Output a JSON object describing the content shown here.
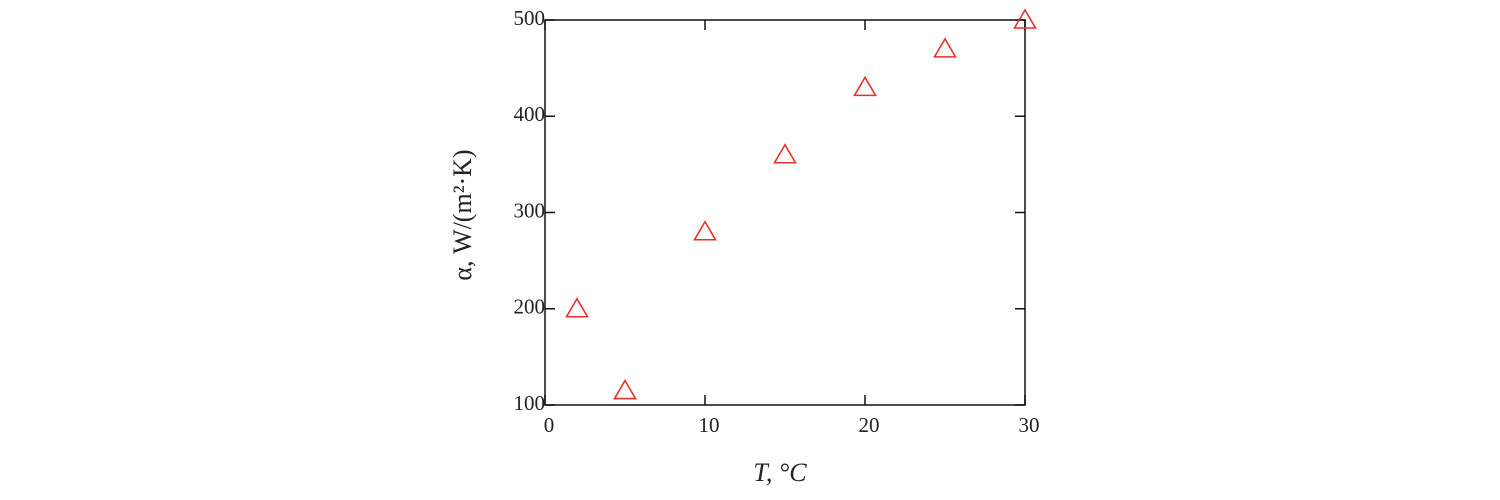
{
  "chart_data": {
    "type": "scatter",
    "x_label": "T, °C",
    "y_label": "α, W/(m²·K)",
    "series": [
      {
        "color": "#e8312a",
        "marker": "triangle-open",
        "x": [
          2,
          5,
          10,
          15,
          20,
          25,
          30
        ],
        "values": [
          200,
          115,
          280,
          360,
          430,
          470,
          500
        ]
      }
    ],
    "xlim": [
      0,
      30
    ],
    "xticks": [
      0,
      10,
      20,
      30
    ],
    "ylim": [
      100,
      500
    ],
    "yticks": [
      100,
      200,
      300,
      400,
      500
    ],
    "grid": false
  }
}
